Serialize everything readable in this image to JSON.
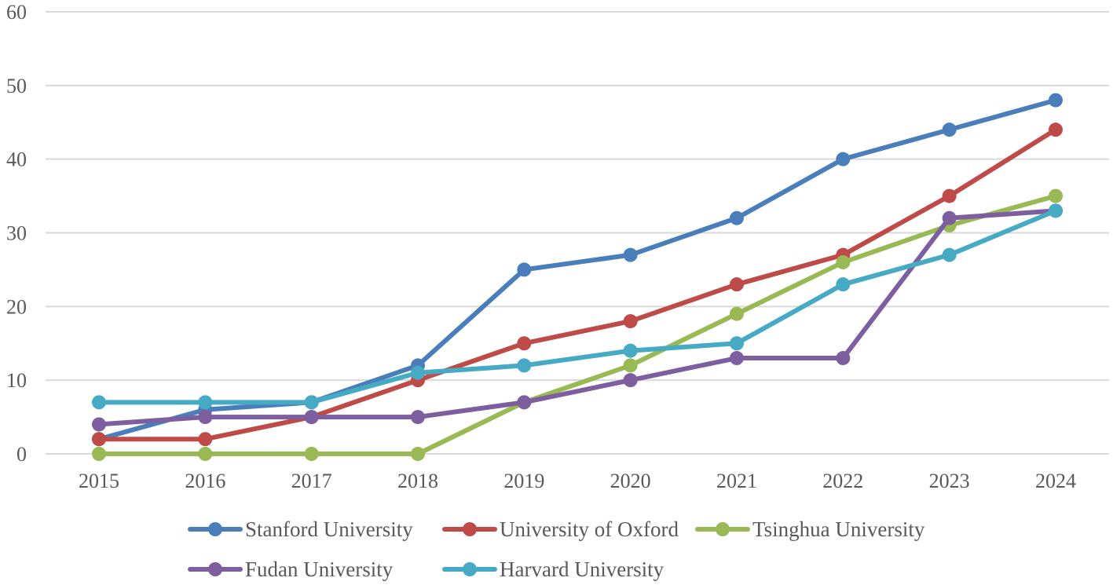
{
  "chart_data": {
    "type": "line",
    "title": "",
    "xlabel": "",
    "ylabel": "",
    "x": [
      "2015",
      "2016",
      "2017",
      "2018",
      "2019",
      "2020",
      "2021",
      "2022",
      "2023",
      "2024"
    ],
    "ylim": [
      0,
      60
    ],
    "yticks": [
      "0",
      "10",
      "20",
      "30",
      "40",
      "50",
      "60"
    ],
    "grid": "horizontal",
    "legend_position": "bottom",
    "series": [
      {
        "name": "Stanford University",
        "color": "#4a7ebb",
        "values": [
          2,
          6,
          7,
          12,
          25,
          27,
          32,
          40,
          44,
          48
        ]
      },
      {
        "name": "University of Oxford",
        "color": "#be4b48",
        "values": [
          2,
          2,
          5,
          10,
          15,
          18,
          23,
          27,
          35,
          44
        ]
      },
      {
        "name": "Tsinghua University",
        "color": "#98b954",
        "values": [
          0,
          0,
          0,
          0,
          7,
          12,
          19,
          26,
          31,
          35
        ]
      },
      {
        "name": "Fudan University",
        "color": "#7d5fa0",
        "values": [
          4,
          5,
          5,
          5,
          7,
          10,
          13,
          13,
          32,
          33
        ]
      },
      {
        "name": "Harvard University",
        "color": "#46aac5",
        "values": [
          7,
          7,
          7,
          11,
          12,
          14,
          15,
          23,
          27,
          33
        ]
      }
    ]
  }
}
